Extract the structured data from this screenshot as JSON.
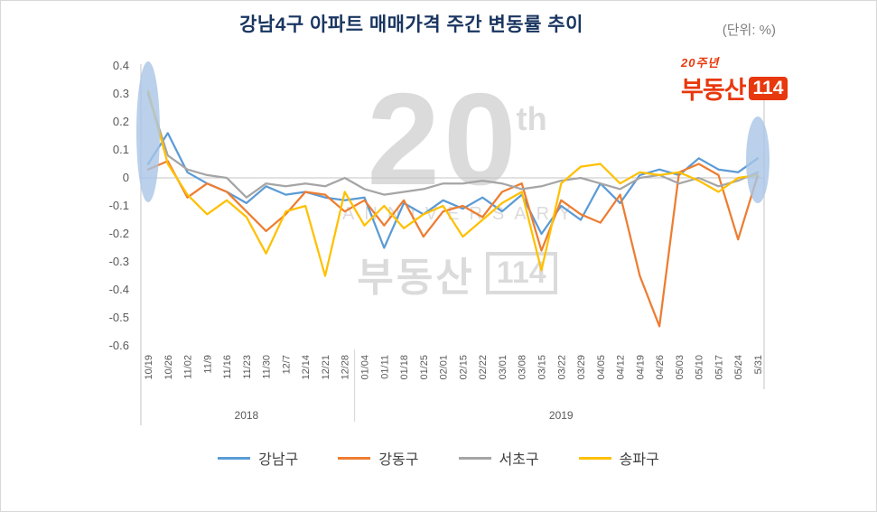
{
  "header": {
    "title": "강남4구 아파트 매매가격 주간 변동률 추이",
    "unit_label": "(단위: %)"
  },
  "logo": {
    "anniversary": "20주년",
    "brand": "부동산",
    "number": "114"
  },
  "watermark": {
    "big": "20",
    "sup": "th",
    "line": "ANNIVERSARY",
    "brand": "부동산",
    "number": "114"
  },
  "axis": {
    "y_ticks": [
      0.4,
      0.3,
      0.2,
      0.1,
      0,
      -0.1,
      -0.2,
      -0.3,
      -0.4,
      -0.5,
      -0.6
    ],
    "y_tick_labels": [
      "0.4",
      "0.3",
      "0.2",
      "0.1",
      "0",
      "-0.1",
      "-0.2",
      "-0.3",
      "-0.4",
      "-0.5",
      "-0.6"
    ],
    "year_labels": [
      "2018",
      "2019"
    ]
  },
  "chart_data": {
    "type": "line",
    "title": "강남4구 아파트 매매가격 주간 변동률 추이",
    "unit": "%",
    "ylim": [
      -0.6,
      0.4
    ],
    "ytick_step": 0.1,
    "grid": false,
    "legend_position": "bottom",
    "categories": [
      "10/19",
      "10/26",
      "11/02",
      "11/9",
      "11/16",
      "11/23",
      "11/30",
      "12/7",
      "12/14",
      "12/21",
      "12/28",
      "01/04",
      "01/11",
      "01/18",
      "01/25",
      "02/01",
      "02/15",
      "02/22",
      "03/01",
      "03/08",
      "03/15",
      "03/22",
      "03/29",
      "04/05",
      "04/12",
      "04/19",
      "04/26",
      "05/03",
      "05/10",
      "05/17",
      "05/24",
      "5/31"
    ],
    "series": [
      {
        "name": "강남구",
        "color": "#5B9BD5",
        "values": [
          0.05,
          0.16,
          0.02,
          -0.02,
          -0.05,
          -0.09,
          -0.03,
          -0.06,
          -0.05,
          -0.07,
          -0.08,
          -0.07,
          -0.25,
          -0.09,
          -0.13,
          -0.08,
          -0.11,
          -0.07,
          -0.12,
          -0.06,
          -0.2,
          -0.1,
          -0.15,
          -0.02,
          -0.09,
          0.01,
          0.03,
          0.01,
          0.07,
          0.03,
          0.02,
          0.07
        ]
      },
      {
        "name": "강동구",
        "color": "#ED7D31",
        "values": [
          0.03,
          0.06,
          -0.07,
          -0.02,
          -0.05,
          -0.12,
          -0.19,
          -0.13,
          -0.05,
          -0.06,
          -0.12,
          -0.08,
          -0.17,
          -0.08,
          -0.21,
          -0.12,
          -0.1,
          -0.14,
          -0.05,
          -0.02,
          -0.26,
          -0.08,
          -0.13,
          -0.16,
          -0.06,
          -0.35,
          -0.53,
          0.02,
          0.05,
          0.01,
          -0.22,
          0.01
        ]
      },
      {
        "name": "서초구",
        "color": "#A5A5A5",
        "values": [
          0.3,
          0.08,
          0.03,
          0.01,
          0.0,
          -0.07,
          -0.02,
          -0.03,
          -0.02,
          -0.03,
          0.0,
          -0.04,
          -0.06,
          -0.05,
          -0.04,
          -0.02,
          -0.02,
          -0.01,
          -0.02,
          -0.04,
          -0.03,
          -0.01,
          0.0,
          -0.02,
          -0.04,
          0.0,
          0.01,
          -0.02,
          0.0,
          -0.03,
          -0.01,
          0.02
        ]
      },
      {
        "name": "송파구",
        "color": "#FFC000",
        "values": [
          0.31,
          0.05,
          -0.06,
          -0.13,
          -0.08,
          -0.14,
          -0.27,
          -0.12,
          -0.1,
          -0.35,
          -0.05,
          -0.17,
          -0.1,
          -0.18,
          -0.13,
          -0.1,
          -0.21,
          -0.15,
          -0.09,
          -0.05,
          -0.33,
          -0.02,
          0.04,
          0.05,
          -0.02,
          0.02,
          0.01,
          0.02,
          -0.01,
          -0.05,
          0.0,
          0.01
        ]
      }
    ],
    "annotations": [
      {
        "type": "ellipse-highlight",
        "position": "first-point",
        "color": "#A9C4E6"
      },
      {
        "type": "ellipse-highlight",
        "position": "last-point",
        "color": "#A9C4E6"
      }
    ]
  }
}
